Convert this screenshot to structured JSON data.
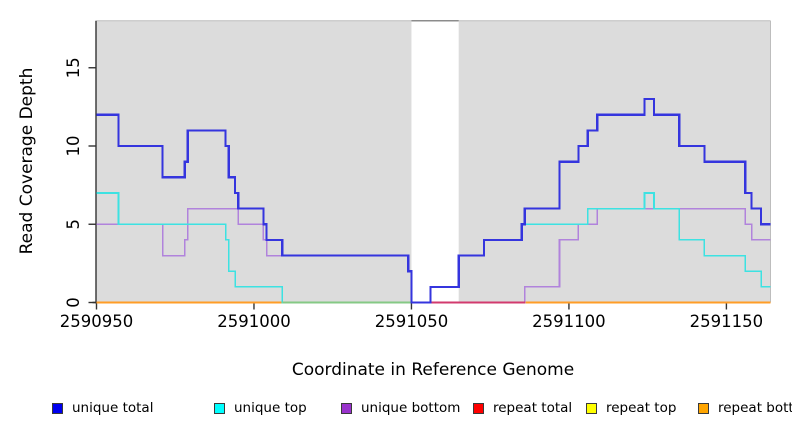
{
  "figure": {
    "xlabel": "Coordinate in Reference Genome",
    "ylabel": "Read Coverage Depth"
  },
  "legend": {
    "items": [
      {
        "label": "unique total",
        "color": "#0000EE"
      },
      {
        "label": "unique top",
        "color": "#00FFFF"
      },
      {
        "label": "unique bottom",
        "color": "#9933CC"
      },
      {
        "label": "repeat total",
        "color": "#FF0000"
      },
      {
        "label": "repeat top",
        "color": "#FFFF00"
      },
      {
        "label": "repeat bottom",
        "color": "#FFA500"
      }
    ]
  },
  "chart_data": {
    "type": "line",
    "subtype": "step",
    "title": "",
    "xlabel": "Coordinate in Reference Genome",
    "ylabel": "Read Coverage Depth",
    "xlim": [
      2590950,
      2591164
    ],
    "ylim": [
      0,
      18
    ],
    "x_ticks": [
      2590950,
      2591000,
      2591050,
      2591100,
      2591150
    ],
    "y_ticks": [
      0,
      5,
      10,
      15
    ],
    "grid": false,
    "legend_position": "bottom",
    "plot_bg": "#DCDCDC",
    "axis_color": "#333333",
    "box_border_color": "#BDBDBD",
    "masked_region": {
      "x_start": 2591050,
      "x_end": 2591065,
      "fill": "#FFFFFF",
      "top_border": "#8C8C8C"
    },
    "series": [
      {
        "name": "unique total",
        "color": "#3535DE",
        "line_width": 2.2,
        "steps": [
          [
            2590950,
            12
          ],
          [
            2590957,
            10
          ],
          [
            2590971,
            8
          ],
          [
            2590978,
            9
          ],
          [
            2590979,
            11
          ],
          [
            2590991,
            10
          ],
          [
            2590992,
            8
          ],
          [
            2590994,
            7
          ],
          [
            2590995,
            6
          ],
          [
            2591003,
            5
          ],
          [
            2591004,
            4
          ],
          [
            2591009,
            3
          ],
          [
            2591049,
            2
          ],
          [
            2591050,
            0
          ],
          [
            2591056,
            1
          ],
          [
            2591065,
            3
          ],
          [
            2591073,
            4
          ],
          [
            2591085,
            5
          ],
          [
            2591086,
            6
          ],
          [
            2591097,
            9
          ],
          [
            2591103,
            10
          ],
          [
            2591106,
            11
          ],
          [
            2591109,
            12
          ],
          [
            2591124,
            13
          ],
          [
            2591127,
            12
          ],
          [
            2591135,
            10
          ],
          [
            2591143,
            9
          ],
          [
            2591156,
            7
          ],
          [
            2591158,
            6
          ],
          [
            2591161,
            5
          ]
        ]
      },
      {
        "name": "unique top",
        "color": "#3DE2E2",
        "line_width": 1.6,
        "steps": [
          [
            2590950,
            7
          ],
          [
            2590957,
            5
          ],
          [
            2590991,
            4
          ],
          [
            2590992,
            2
          ],
          [
            2590994,
            1
          ],
          [
            2591009,
            0
          ],
          [
            2591056,
            1
          ],
          [
            2591065,
            3
          ],
          [
            2591073,
            4
          ],
          [
            2591085,
            5
          ],
          [
            2591106,
            6
          ],
          [
            2591124,
            7
          ],
          [
            2591127,
            6
          ],
          [
            2591135,
            4
          ],
          [
            2591143,
            3
          ],
          [
            2591156,
            2
          ],
          [
            2591161,
            1
          ]
        ]
      },
      {
        "name": "unique bottom",
        "color": "#B183DC",
        "line_width": 1.6,
        "steps": [
          [
            2590950,
            5
          ],
          [
            2590971,
            3
          ],
          [
            2590978,
            4
          ],
          [
            2590979,
            6
          ],
          [
            2590995,
            5
          ],
          [
            2591003,
            4
          ],
          [
            2591004,
            3
          ],
          [
            2591049,
            2
          ],
          [
            2591050,
            0
          ],
          [
            2591086,
            1
          ],
          [
            2591097,
            4
          ],
          [
            2591103,
            5
          ],
          [
            2591109,
            6
          ],
          [
            2591156,
            5
          ],
          [
            2591158,
            4
          ]
        ]
      },
      {
        "name": "repeat total",
        "color": "#DD0000",
        "line_width": 1.6,
        "steps": [
          [
            2590950,
            0
          ]
        ]
      },
      {
        "name": "repeat top",
        "color": "#F5E900",
        "line_width": 1.6,
        "steps": [
          [
            2590950,
            0
          ]
        ]
      },
      {
        "name": "repeat bottom",
        "color": "#FF9D26",
        "line_width": 1.8,
        "steps": [
          [
            2590950,
            0
          ]
        ]
      }
    ],
    "baseline_overlap_segments": [
      {
        "color": "#85C985",
        "x_start": 2591009,
        "x_end": 2591050,
        "value": 0,
        "represents": "unique-top at zero overlapping repeat baseline"
      },
      {
        "color": "#D23A6E",
        "x_start": 2591056,
        "x_end": 2591086,
        "value": 0,
        "represents": "unique-bottom at zero overlapping repeat baseline"
      }
    ]
  }
}
